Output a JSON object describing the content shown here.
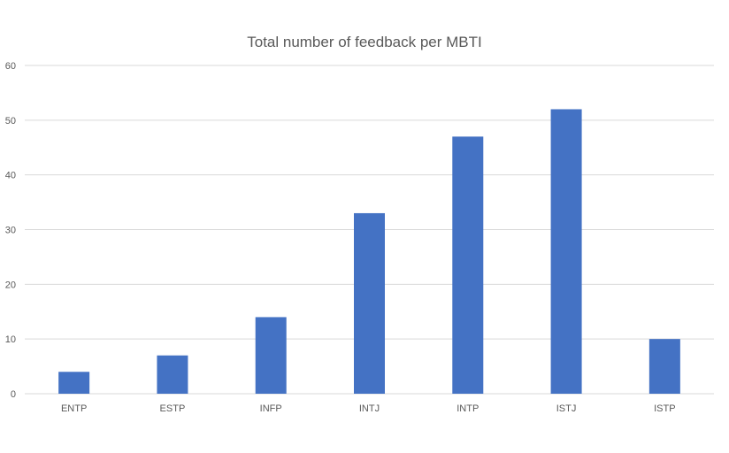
{
  "chart_data": {
    "type": "bar",
    "title": "Total number of feedback per MBTI",
    "xlabel": "",
    "ylabel": "",
    "categories": [
      "ENTP",
      "ESTP",
      "INFP",
      "INTJ",
      "INTP",
      "ISTJ",
      "ISTP"
    ],
    "values": [
      4,
      7,
      14,
      33,
      47,
      52,
      10
    ],
    "ylim": [
      0,
      60
    ],
    "yticks": [
      "0",
      "10",
      "20",
      "30",
      "40",
      "50",
      "60"
    ],
    "grid": true,
    "legend": "none",
    "bar_color": "#4472C4",
    "grid_color": "#d9d9d9",
    "text_color": "#595959"
  }
}
